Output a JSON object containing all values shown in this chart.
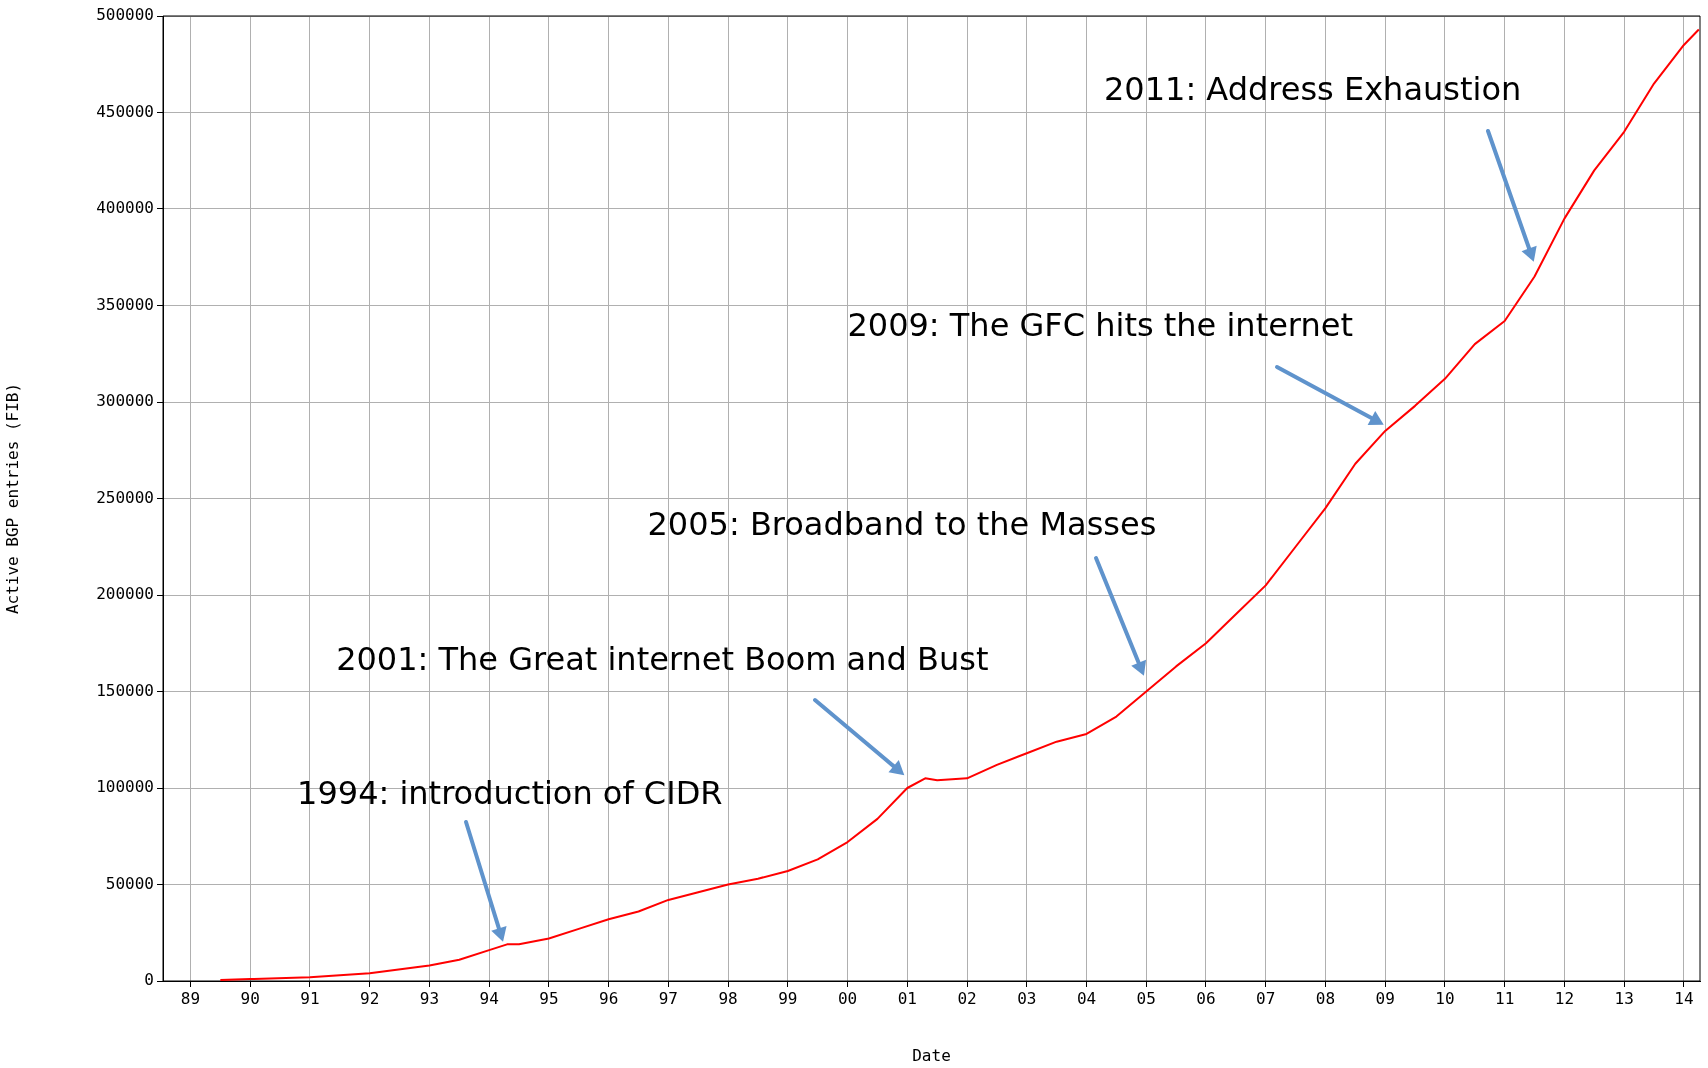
{
  "chart_data": {
    "type": "line",
    "xlabel": "Date",
    "ylabel": "Active BGP entries (FIB)",
    "xlim": [
      1988.54,
      2014.27
    ],
    "ylim": [
      0,
      500000
    ],
    "xticks": [
      {
        "value": 1989,
        "label": "89"
      },
      {
        "value": 1990,
        "label": "90"
      },
      {
        "value": 1991,
        "label": "91"
      },
      {
        "value": 1992,
        "label": "92"
      },
      {
        "value": 1993,
        "label": "93"
      },
      {
        "value": 1994,
        "label": "94"
      },
      {
        "value": 1995,
        "label": "95"
      },
      {
        "value": 1996,
        "label": "96"
      },
      {
        "value": 1997,
        "label": "97"
      },
      {
        "value": 1998,
        "label": "98"
      },
      {
        "value": 1999,
        "label": "99"
      },
      {
        "value": 2000,
        "label": "00"
      },
      {
        "value": 2001,
        "label": "01"
      },
      {
        "value": 2002,
        "label": "02"
      },
      {
        "value": 2003,
        "label": "03"
      },
      {
        "value": 2004,
        "label": "04"
      },
      {
        "value": 2005,
        "label": "05"
      },
      {
        "value": 2006,
        "label": "06"
      },
      {
        "value": 2007,
        "label": "07"
      },
      {
        "value": 2008,
        "label": "08"
      },
      {
        "value": 2009,
        "label": "09"
      },
      {
        "value": 2010,
        "label": "10"
      },
      {
        "value": 2011,
        "label": "11"
      },
      {
        "value": 2012,
        "label": "12"
      },
      {
        "value": 2013,
        "label": "13"
      },
      {
        "value": 2014,
        "label": "14"
      }
    ],
    "yticks": [
      0,
      50000,
      100000,
      150000,
      200000,
      250000,
      300000,
      350000,
      400000,
      450000,
      500000
    ],
    "grid": true,
    "marker": "none",
    "line_style": "solid",
    "series": [
      {
        "color": "#ff0000",
        "x": [
          1989.5,
          1990,
          1991,
          1992,
          1993,
          1993.5,
          1994,
          1994.3,
          1994.5,
          1995,
          1995.5,
          1996,
          1996.5,
          1997,
          1997.5,
          1998,
          1998.5,
          1999,
          1999.5,
          2000,
          2000.5,
          2001,
          2001.3,
          2001.5,
          2002,
          2002.5,
          2003,
          2003.5,
          2004,
          2004.5,
          2005,
          2005.5,
          2006,
          2006.5,
          2007,
          2007.5,
          2008,
          2008.5,
          2009,
          2009.5,
          2010,
          2010.5,
          2011,
          2011.5,
          2012,
          2012.5,
          2013,
          2013.5,
          2014,
          2014.25
        ],
        "values": [
          500,
          1000,
          2000,
          4000,
          8000,
          11000,
          16000,
          19000,
          19000,
          22000,
          27000,
          32000,
          36000,
          42000,
          46000,
          50000,
          53000,
          57000,
          63000,
          72000,
          84000,
          100000,
          105000,
          104000,
          105000,
          112000,
          118000,
          124000,
          128000,
          137000,
          150000,
          163000,
          175000,
          190000,
          205000,
          225000,
          245000,
          268000,
          285000,
          298000,
          312000,
          330000,
          342000,
          365000,
          395000,
          420000,
          440000,
          465000,
          485000,
          493000
        ]
      }
    ],
    "annotations": [
      "1994: introduction of CIDR",
      "2001: The Great internet Boom and Bust",
      "2005: Broadband to the Masses",
      "2009: The GFC hits the internet",
      "2011: Address Exhaustion"
    ]
  }
}
